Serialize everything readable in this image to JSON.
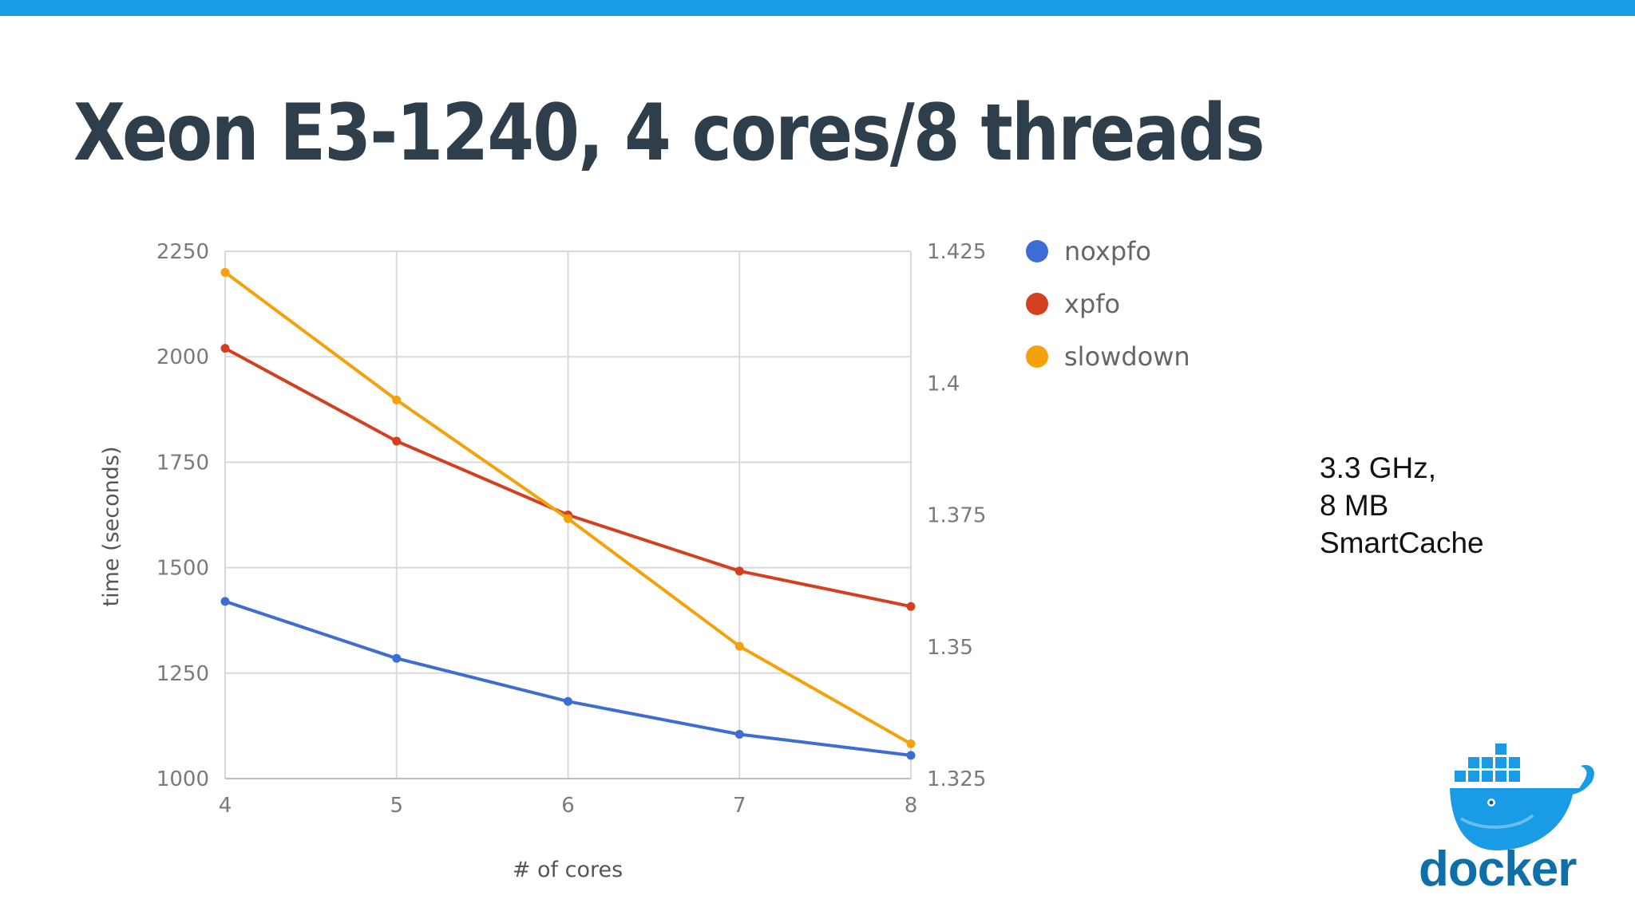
{
  "slide": {
    "title": "Xeon E3-1240, 4 cores/8 threads",
    "side_note": [
      "3.3 GHz,",
      "8 MB",
      "SmartCache"
    ],
    "logo_text": "docker",
    "accent_color": "#1a9be6"
  },
  "chart_data": {
    "type": "line",
    "title": "",
    "xlabel": "# of cores",
    "ylabel": "time (seconds)",
    "x": [
      4,
      5,
      6,
      7,
      8
    ],
    "ylim": [
      1000,
      2250
    ],
    "yticks": [
      "1000",
      "1250",
      "1500",
      "1750",
      "2000",
      "2250"
    ],
    "y2lim": [
      1.325,
      1.425
    ],
    "y2ticks": [
      "1.325",
      "1.35",
      "1.375",
      "1.4",
      "1.425"
    ],
    "grid": true,
    "legend_position": "right",
    "series": [
      {
        "name": "noxpfo",
        "axis": "left",
        "color": "#3c6cd4",
        "values": [
          1420,
          1285,
          1183,
          1105,
          1055
        ]
      },
      {
        "name": "xpfo",
        "axis": "left",
        "color": "#d3401f",
        "values": [
          2020,
          1800,
          1625,
          1492,
          1408
        ]
      },
      {
        "name": "slowdown",
        "axis": "right",
        "color": "#f5a20a",
        "values": [
          1.421,
          1.3968,
          1.3743,
          1.3501,
          1.3316
        ]
      }
    ]
  }
}
